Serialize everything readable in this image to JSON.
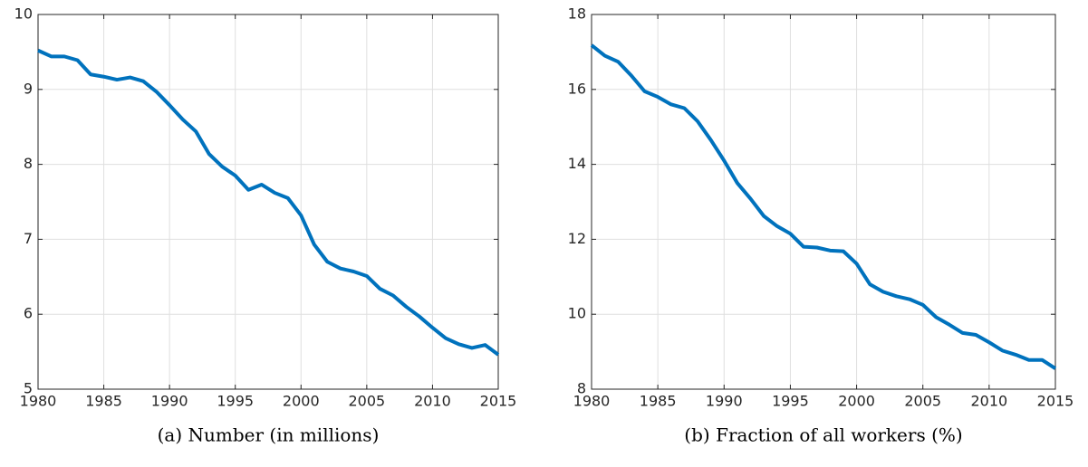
{
  "chart_data": [
    {
      "type": "line",
      "xlabel": "(a) Number (in millions)",
      "x": [
        1980,
        1981,
        1982,
        1983,
        1984,
        1985,
        1986,
        1987,
        1988,
        1989,
        1990,
        1991,
        1992,
        1993,
        1994,
        1995,
        1996,
        1997,
        1998,
        1999,
        2000,
        2001,
        2002,
        2003,
        2004,
        2005,
        2006,
        2007,
        2008,
        2009,
        2010,
        2011,
        2012,
        2013,
        2014,
        2015
      ],
      "values": [
        9.52,
        9.44,
        9.44,
        9.39,
        9.2,
        9.17,
        9.13,
        9.16,
        9.11,
        8.97,
        8.79,
        8.6,
        8.44,
        8.14,
        7.97,
        7.85,
        7.66,
        7.73,
        7.62,
        7.55,
        7.32,
        6.93,
        6.7,
        6.61,
        6.57,
        6.51,
        6.34,
        6.25,
        6.1,
        5.97,
        5.82,
        5.68,
        5.6,
        5.55,
        5.59,
        5.46
      ],
      "color": "#0072bd",
      "xlim": [
        1980,
        2015
      ],
      "xticks": [
        1980,
        1985,
        1990,
        1995,
        2000,
        2005,
        2010,
        2015
      ],
      "ylim": [
        5,
        10
      ],
      "yticks": [
        5,
        6,
        7,
        8,
        9,
        10
      ],
      "grid": true
    },
    {
      "type": "line",
      "xlabel": "(b) Fraction of all workers (%)",
      "x": [
        1980,
        1981,
        1982,
        1983,
        1984,
        1985,
        1986,
        1987,
        1988,
        1989,
        1990,
        1991,
        1992,
        1993,
        1994,
        1995,
        1996,
        1997,
        1998,
        1999,
        2000,
        2001,
        2002,
        2003,
        2004,
        2005,
        2006,
        2007,
        2008,
        2009,
        2010,
        2011,
        2012,
        2013,
        2014,
        2015
      ],
      "values": [
        17.18,
        16.9,
        16.74,
        16.37,
        15.95,
        15.8,
        15.6,
        15.5,
        15.15,
        14.65,
        14.1,
        13.5,
        13.08,
        12.62,
        12.35,
        12.15,
        11.8,
        11.78,
        11.7,
        11.68,
        11.35,
        10.8,
        10.6,
        10.48,
        10.4,
        10.25,
        9.92,
        9.72,
        9.5,
        9.45,
        9.25,
        9.03,
        8.92,
        8.78,
        8.78,
        8.55
      ],
      "color": "#0072bd",
      "xlim": [
        1980,
        2015
      ],
      "xticks": [
        1980,
        1985,
        1990,
        1995,
        2000,
        2005,
        2010,
        2015
      ],
      "ylim": [
        8,
        18
      ],
      "yticks": [
        8,
        10,
        12,
        14,
        16,
        18
      ],
      "grid": true
    }
  ]
}
